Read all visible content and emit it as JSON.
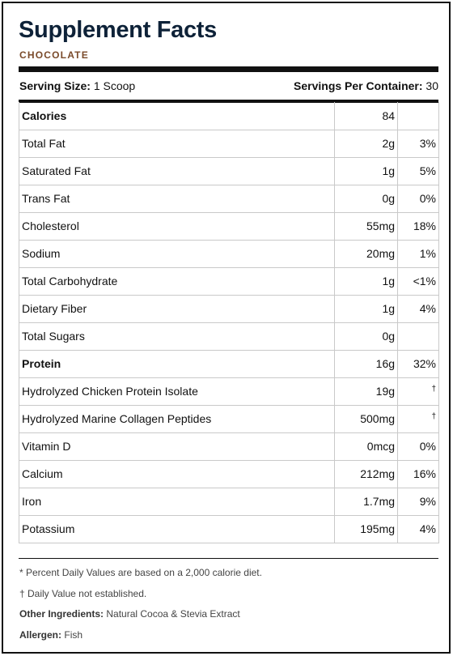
{
  "header": {
    "title": "Supplement Facts",
    "flavor": "CHOCOLATE"
  },
  "serving": {
    "size_label": "Serving Size:",
    "size_value": "1 Scoop",
    "per_container_label": "Servings Per Container:",
    "per_container_value": "30"
  },
  "rows": [
    {
      "name": "Calories",
      "amount": "84",
      "dv": ""
    },
    {
      "name": "Total Fat",
      "amount": "2g",
      "dv": "3%"
    },
    {
      "name": "Saturated Fat",
      "amount": "1g",
      "dv": "5%"
    },
    {
      "name": "Trans Fat",
      "amount": "0g",
      "dv": "0%"
    },
    {
      "name": "Cholesterol",
      "amount": "55mg",
      "dv": "18%"
    },
    {
      "name": "Sodium",
      "amount": "20mg",
      "dv": "1%"
    },
    {
      "name": "Total Carbohydrate",
      "amount": "1g",
      "dv": "<1%"
    },
    {
      "name": "Dietary Fiber",
      "amount": "1g",
      "dv": "4%"
    },
    {
      "name": "Total Sugars",
      "amount": "0g",
      "dv": ""
    },
    {
      "name": "Protein",
      "amount": "16g",
      "dv": "32%"
    },
    {
      "name": "Hydrolyzed Chicken Protein Isolate",
      "amount": "19g",
      "dv": "†"
    },
    {
      "name": "Hydrolyzed Marine Collagen Peptides",
      "amount": "500mg",
      "dv": "†"
    },
    {
      "name": "Vitamin D",
      "amount": "0mcg",
      "dv": "0%"
    },
    {
      "name": "Calcium",
      "amount": "212mg",
      "dv": "16%"
    },
    {
      "name": "Iron",
      "amount": "1.7mg",
      "dv": "9%"
    },
    {
      "name": "Potassium",
      "amount": "195mg",
      "dv": "4%"
    }
  ],
  "footnotes": {
    "percent_note": "* Percent Daily Values are based on a 2,000 calorie diet.",
    "dagger_note": "† Daily Value not established.",
    "other_ingredients_label": "Other Ingredients:",
    "other_ingredients_value": "Natural Cocoa & Stevia Extract",
    "allergen_label": "Allergen:",
    "allergen_value": "Fish"
  }
}
